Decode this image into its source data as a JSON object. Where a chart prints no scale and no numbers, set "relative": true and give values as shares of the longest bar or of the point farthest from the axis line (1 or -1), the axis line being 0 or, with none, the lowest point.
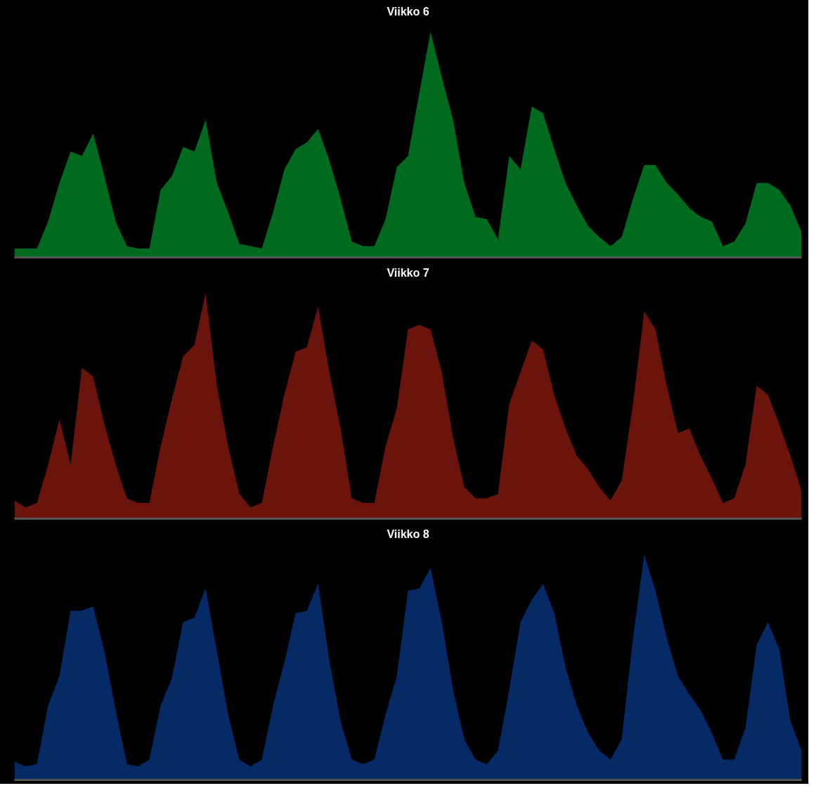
{
  "chart_data": [
    {
      "type": "area",
      "title": "Viikko 6",
      "relative": true,
      "categories": [
        null,
        null,
        null,
        null,
        null,
        null,
        null,
        null,
        null,
        null,
        null,
        null,
        null,
        null,
        null,
        null,
        null,
        null,
        null,
        null,
        null,
        null,
        null,
        null,
        null,
        null,
        null,
        null,
        null,
        null,
        null,
        null,
        null,
        null,
        null,
        null,
        null,
        null,
        null,
        null,
        null,
        null,
        null,
        null,
        null,
        null,
        null,
        null,
        null,
        null,
        null,
        null,
        null,
        null,
        null,
        null,
        null,
        null,
        null,
        null,
        null,
        null,
        null,
        null,
        null,
        null,
        null,
        null,
        null,
        null,
        null
      ],
      "series": [
        {
          "color": "#006a1e",
          "values": [
            0.04,
            0.04,
            0.04,
            0.16,
            0.33,
            0.47,
            0.45,
            0.55,
            0.36,
            0.16,
            0.05,
            0.04,
            0.04,
            0.3,
            0.36,
            0.49,
            0.47,
            0.61,
            0.33,
            0.2,
            0.06,
            0.05,
            0.04,
            0.2,
            0.39,
            0.48,
            0.51,
            0.57,
            0.43,
            0.26,
            0.07,
            0.05,
            0.05,
            0.17,
            0.4,
            0.45,
            0.73,
            1.0,
            0.8,
            0.61,
            0.33,
            0.18,
            0.17,
            0.08,
            0.45,
            0.39,
            0.67,
            0.64,
            0.48,
            0.33,
            0.23,
            0.14,
            0.09,
            0.05,
            0.09,
            0.26,
            0.41,
            0.41,
            0.33,
            0.28,
            0.22,
            0.18,
            0.16,
            0.05,
            0.07,
            0.15,
            0.33,
            0.33,
            0.3,
            0.23,
            0.11
          ]
        }
      ]
    },
    {
      "type": "area",
      "title": "Viikko 7",
      "relative": true,
      "categories": [
        null,
        null,
        null,
        null,
        null,
        null,
        null,
        null,
        null,
        null,
        null,
        null,
        null,
        null,
        null,
        null,
        null,
        null,
        null,
        null,
        null,
        null,
        null,
        null,
        null,
        null,
        null,
        null,
        null,
        null,
        null,
        null,
        null,
        null,
        null,
        null,
        null,
        null,
        null,
        null,
        null,
        null,
        null,
        null,
        null,
        null,
        null,
        null,
        null,
        null,
        null,
        null,
        null,
        null,
        null,
        null,
        null,
        null,
        null,
        null,
        null,
        null,
        null,
        null,
        null,
        null,
        null,
        null,
        null,
        null,
        null
      ],
      "series": [
        {
          "color": "#6b140b",
          "values": [
            0.08,
            0.05,
            0.07,
            0.24,
            0.44,
            0.24,
            0.67,
            0.63,
            0.42,
            0.24,
            0.09,
            0.07,
            0.07,
            0.32,
            0.53,
            0.72,
            0.77,
            1.0,
            0.59,
            0.32,
            0.11,
            0.05,
            0.07,
            0.32,
            0.55,
            0.74,
            0.76,
            0.94,
            0.65,
            0.4,
            0.09,
            0.07,
            0.07,
            0.32,
            0.49,
            0.84,
            0.86,
            0.84,
            0.65,
            0.36,
            0.14,
            0.09,
            0.09,
            0.11,
            0.51,
            0.65,
            0.79,
            0.75,
            0.55,
            0.4,
            0.28,
            0.22,
            0.14,
            0.08,
            0.17,
            0.51,
            0.92,
            0.84,
            0.59,
            0.38,
            0.4,
            0.28,
            0.18,
            0.07,
            0.09,
            0.24,
            0.59,
            0.55,
            0.42,
            0.28,
            0.12
          ]
        }
      ]
    },
    {
      "type": "area",
      "title": "Viikko 8",
      "relative": true,
      "categories": [
        null,
        null,
        null,
        null,
        null,
        null,
        null,
        null,
        null,
        null,
        null,
        null,
        null,
        null,
        null,
        null,
        null,
        null,
        null,
        null,
        null,
        null,
        null,
        null,
        null,
        null,
        null,
        null,
        null,
        null,
        null,
        null,
        null,
        null,
        null,
        null,
        null,
        null,
        null,
        null,
        null,
        null,
        null,
        null,
        null,
        null,
        null,
        null,
        null,
        null,
        null,
        null,
        null,
        null,
        null,
        null,
        null,
        null,
        null,
        null,
        null,
        null,
        null,
        null,
        null,
        null,
        null,
        null,
        null,
        null,
        null
      ],
      "series": [
        {
          "color": "#062a66",
          "values": [
            0.08,
            0.06,
            0.07,
            0.33,
            0.46,
            0.75,
            0.75,
            0.77,
            0.57,
            0.31,
            0.07,
            0.06,
            0.09,
            0.33,
            0.45,
            0.7,
            0.72,
            0.85,
            0.57,
            0.29,
            0.09,
            0.06,
            0.09,
            0.33,
            0.52,
            0.74,
            0.75,
            0.87,
            0.53,
            0.26,
            0.09,
            0.07,
            0.09,
            0.29,
            0.46,
            0.84,
            0.85,
            0.94,
            0.7,
            0.4,
            0.18,
            0.09,
            0.07,
            0.13,
            0.4,
            0.7,
            0.8,
            0.87,
            0.74,
            0.5,
            0.33,
            0.21,
            0.13,
            0.09,
            0.18,
            0.63,
            1.0,
            0.84,
            0.63,
            0.46,
            0.38,
            0.31,
            0.21,
            0.09,
            0.09,
            0.23,
            0.6,
            0.7,
            0.58,
            0.26,
            0.13
          ]
        }
      ]
    }
  ]
}
